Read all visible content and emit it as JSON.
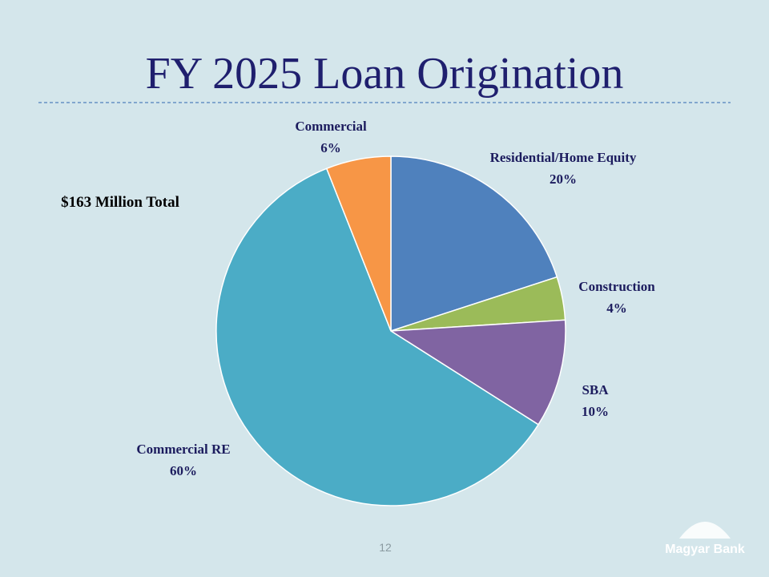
{
  "chart_data": {
    "type": "pie",
    "title": "FY 2025 Loan Origination",
    "annotation": "$163 Million Total",
    "categories": [
      "Residential/Home Equity",
      "Construction",
      "SBA",
      "Commercial RE",
      "Commercial"
    ],
    "values": [
      20,
      4,
      10,
      60,
      6
    ],
    "value_labels": [
      "20%",
      "4%",
      "10%",
      "60%",
      "6%"
    ],
    "colors": [
      "#4f81bd",
      "#9bbb59",
      "#8064a2",
      "#4bacc6",
      "#f79646"
    ]
  },
  "footer": {
    "page_number": "12",
    "logo": "Magyar Bank"
  }
}
